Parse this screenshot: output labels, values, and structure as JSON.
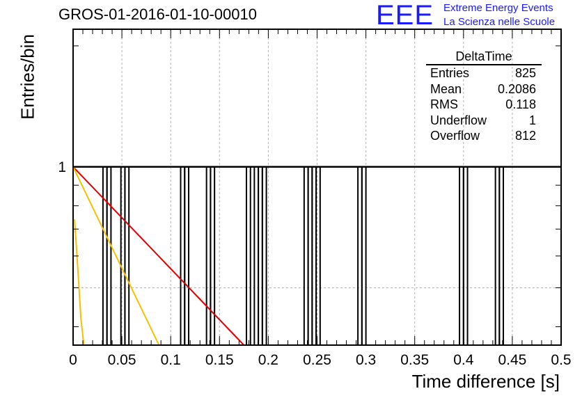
{
  "header": {
    "title": "GROS-01-2016-01-10-00010",
    "logo_text": "EEE",
    "logo_line1": "Extreme Energy Events",
    "logo_line2": "La Scienza nelle Scuole"
  },
  "stats": {
    "title": "DeltaTime",
    "rows": [
      {
        "label": "Entries",
        "value": "825"
      },
      {
        "label": "Mean",
        "value": "0.2086"
      },
      {
        "label": "RMS",
        "value": "0.118"
      },
      {
        "label": "Underflow",
        "value": "1"
      },
      {
        "label": "Overflow",
        "value": "812"
      }
    ]
  },
  "colors": {
    "histogram": "#000000",
    "grid": "#b0b0b0",
    "fit_red": "#e00000",
    "fit_yellow": "#f5c000"
  },
  "chart_data": {
    "type": "bar",
    "xlabel": "Time difference [s]",
    "ylabel": "Entries/bin",
    "xlim": [
      0,
      0.5
    ],
    "y_scale": "log",
    "ylim": [
      0.36,
      2.2
    ],
    "x_ticks": [
      "0",
      "0.05",
      "0.1",
      "0.15",
      "0.2",
      "0.25",
      "0.3",
      "0.35",
      "0.4",
      "0.45",
      "0.5"
    ],
    "y_tick_labels": [
      "1"
    ],
    "grid": true,
    "bin_width": 0.0041,
    "filled_bins_x": [
      0.0306,
      0.0347,
      0.049,
      0.0531,
      0.1102,
      0.1143,
      0.1367,
      0.1408,
      0.1776,
      0.1857,
      0.1898,
      0.1939,
      0.2367,
      0.2408,
      0.2449,
      0.249,
      0.2918,
      0.2959,
      0.3959,
      0.4,
      0.4327,
      0.4367
    ],
    "filled_bins_value": 1,
    "fit_lines": [
      {
        "color": "red",
        "x": [
          0.0,
          0.175
        ],
        "y": [
          1.0,
          0.36
        ]
      },
      {
        "color": "yellow",
        "x": [
          0.0,
          0.088
        ],
        "y": [
          1.0,
          0.36
        ]
      },
      {
        "color": "yellow",
        "x": [
          0.0015,
          0.004,
          0.008,
          0.011
        ],
        "y": [
          0.74,
          0.6,
          0.42,
          0.36
        ]
      }
    ]
  }
}
